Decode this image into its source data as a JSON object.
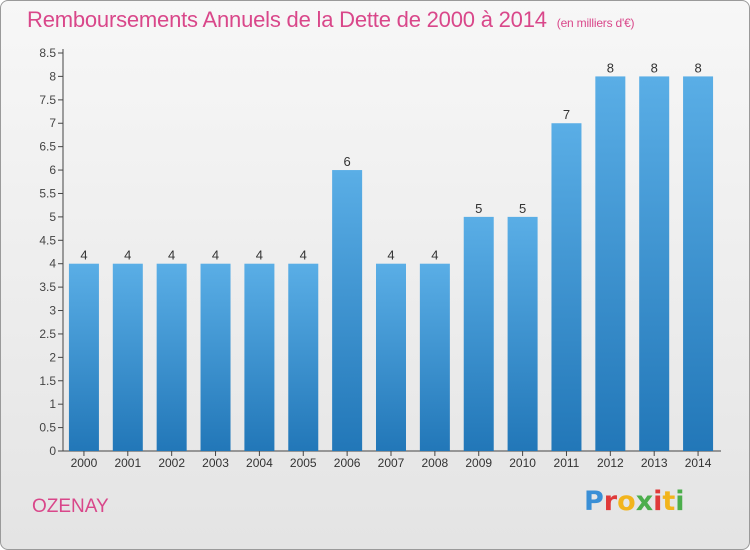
{
  "page": {
    "title": "Remboursements Annuels de la Dette de 2000 à 2014",
    "unit_note": "(en milliers d'€)",
    "town": "OZENAY",
    "logo_letters": [
      "P",
      "r",
      "o",
      "x",
      "i",
      "t",
      "i"
    ],
    "logo_colors": [
      "#3a8fd6",
      "#e03a3a",
      "#f2b41c",
      "#4cae4c",
      "#e03a3a",
      "#f2b41c",
      "#4cae4c"
    ]
  },
  "colors": {
    "title": "#d9478a",
    "bar_top": "#5aaee6",
    "bar_bottom": "#2277b8"
  },
  "chart_data": {
    "type": "bar",
    "categories": [
      "2000",
      "2001",
      "2002",
      "2003",
      "2004",
      "2005",
      "2006",
      "2007",
      "2008",
      "2009",
      "2010",
      "2011",
      "2012",
      "2013",
      "2014"
    ],
    "values": [
      4,
      4,
      4,
      4,
      4,
      4,
      6,
      4,
      4,
      5,
      5,
      7,
      8,
      8,
      8
    ],
    "data_labels": [
      "4",
      "4",
      "4",
      "4",
      "4",
      "4",
      "6",
      "4",
      "4",
      "5",
      "5",
      "7",
      "8",
      "8",
      "8"
    ],
    "yticks": [
      "0",
      "0.5",
      "1",
      "1.5",
      "2",
      "2.5",
      "3",
      "3.5",
      "4",
      "4.5",
      "5",
      "5.5",
      "6",
      "6.5",
      "7",
      "7.5",
      "8",
      "8.5"
    ],
    "ylim": [
      0,
      8.5
    ],
    "grid": false,
    "legend": "none"
  }
}
